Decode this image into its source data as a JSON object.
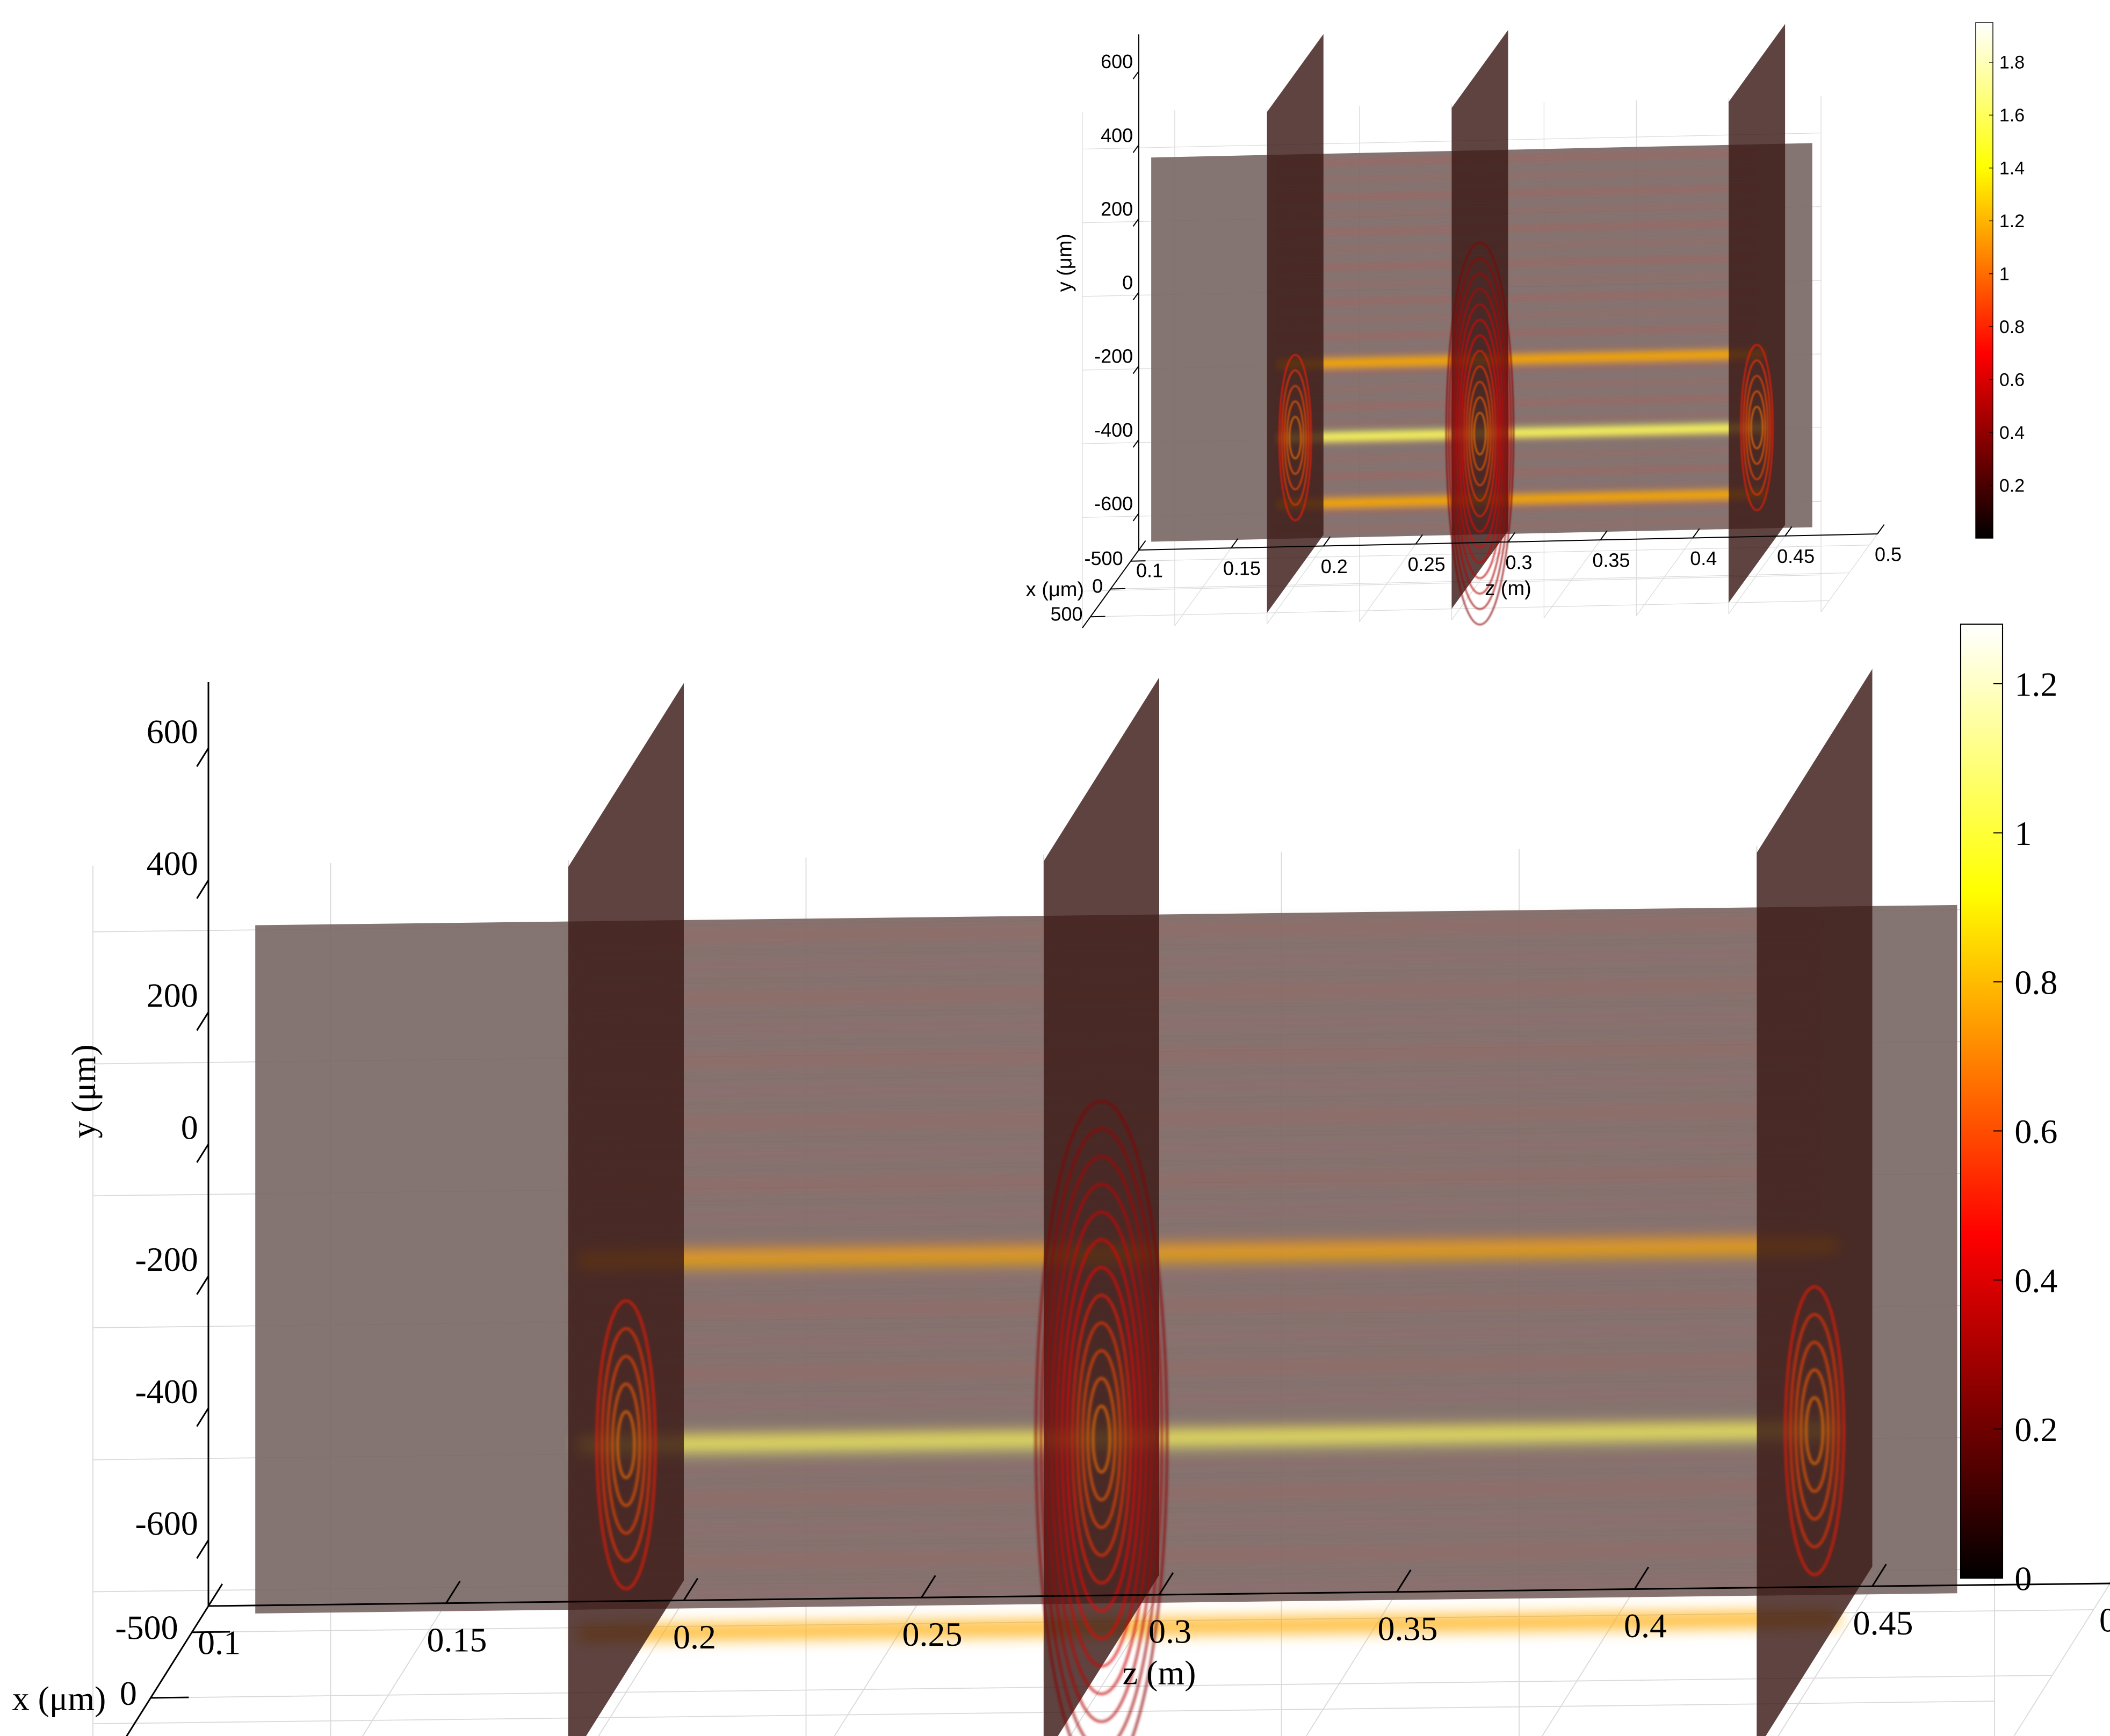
{
  "chart_data": [
    {
      "type": "heatmap",
      "view": "3d-slices",
      "colormap": "hot",
      "title": "",
      "xlabel": "x (μm)",
      "ylabel": "y (μm)",
      "zlabel": "z (m)",
      "z_ticks": [
        0.1,
        0.15,
        0.2,
        0.25,
        0.3,
        0.35,
        0.4,
        0.45,
        0.5
      ],
      "z_tick_labels": [
        "0.1",
        "0.15",
        "0.2",
        "0.25",
        "0.3",
        "0.35",
        "0.4",
        "0.45",
        "0.5"
      ],
      "y_ticks": [
        600,
        400,
        200,
        0,
        -200,
        -400,
        -600
      ],
      "y_tick_labels": [
        "600",
        "400",
        "200",
        "0",
        "-200",
        "-400",
        "-600"
      ],
      "x_ticks": [
        500,
        0,
        -500
      ],
      "x_tick_labels": [
        "500",
        "0",
        "-500"
      ],
      "zlim": [
        0.1,
        0.5
      ],
      "ylim": [
        -700,
        700
      ],
      "xlim": [
        -700,
        700
      ],
      "slice_z": [
        0.2,
        0.3,
        0.45
      ],
      "beam_y": [
        -45,
        -325,
        -610
      ],
      "colorbar": {
        "range": [
          0,
          1.28
        ],
        "ticks": [
          0,
          0.2,
          0.4,
          0.6,
          0.8,
          1,
          1.2
        ],
        "tick_labels": [
          "0",
          "0.2",
          "0.4",
          "0.6",
          "0.8",
          "1",
          "1.2"
        ]
      },
      "grid": true
    },
    {
      "type": "heatmap",
      "view": "3d-slices-inset",
      "colormap": "hot",
      "title": "",
      "xlabel": "x (μm)",
      "ylabel": "y (μm)",
      "zlabel": "z (m)",
      "z_ticks": [
        0.1,
        0.15,
        0.2,
        0.25,
        0.3,
        0.35,
        0.4,
        0.45,
        0.5
      ],
      "z_tick_labels": [
        "0.1",
        "0.15",
        "0.2",
        "0.25",
        "0.3",
        "0.35",
        "0.4",
        "0.45",
        "0.5"
      ],
      "y_ticks": [
        600,
        400,
        200,
        0,
        -200,
        -400,
        -600
      ],
      "y_tick_labels": [
        "600",
        "400",
        "200",
        "0",
        "-200",
        "-400",
        "-600"
      ],
      "x_ticks": [
        500,
        0,
        -500
      ],
      "x_tick_labels": [
        "500",
        "0",
        "-500"
      ],
      "zlim": [
        0.1,
        0.5
      ],
      "ylim": [
        -700,
        700
      ],
      "xlim": [
        -700,
        700
      ],
      "slice_z": [
        0.2,
        0.3,
        0.45
      ],
      "beam_y": [
        -100,
        -300,
        -480
      ],
      "colorbar": {
        "range": [
          0,
          1.95
        ],
        "ticks": [
          0.2,
          0.4,
          0.6,
          0.8,
          1,
          1.2,
          1.4,
          1.6,
          1.8
        ],
        "tick_labels": [
          "0.2",
          "0.4",
          "0.6",
          "0.8",
          "1",
          "1.2",
          "1.4",
          "1.6",
          "1.8"
        ]
      },
      "grid": true
    }
  ]
}
